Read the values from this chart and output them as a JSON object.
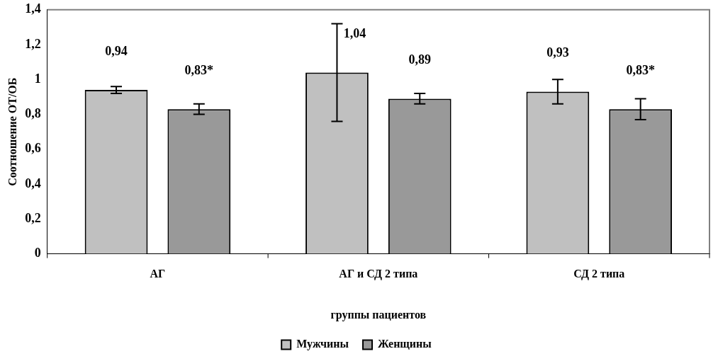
{
  "chart_data": {
    "type": "bar",
    "xlabel": "группы пациентов",
    "ylabel": "Соотношение ОТ/ОБ",
    "categories": [
      "АГ",
      "АГ и СД 2 типа",
      "СД 2 типа"
    ],
    "series": [
      {
        "name": "Мужчины",
        "color": "#c0c0c0",
        "values": [
          0.94,
          1.04,
          0.93
        ],
        "errors": [
          0.02,
          0.28,
          0.07
        ],
        "value_labels": [
          "0,94",
          "1,04",
          "0,93"
        ]
      },
      {
        "name": "Женщины",
        "color": "#999999",
        "values": [
          0.83,
          0.89,
          0.83
        ],
        "errors": [
          0.03,
          0.03,
          0.06
        ],
        "value_labels": [
          "0,83*",
          "0,89",
          "0,83*"
        ]
      }
    ],
    "ylim": [
      0,
      1.4
    ],
    "yticks": [
      {
        "value": 0,
        "label": "0"
      },
      {
        "value": 0.2,
        "label": "0,2"
      },
      {
        "value": 0.4,
        "label": "0,4"
      },
      {
        "value": 0.6,
        "label": "0,6"
      },
      {
        "value": 0.8,
        "label": "0,8"
      },
      {
        "value": 1,
        "label": "1"
      },
      {
        "value": 1.2,
        "label": "1,2"
      },
      {
        "value": 1.4,
        "label": "1,4"
      }
    ],
    "grid": false,
    "legend": "bottom"
  }
}
